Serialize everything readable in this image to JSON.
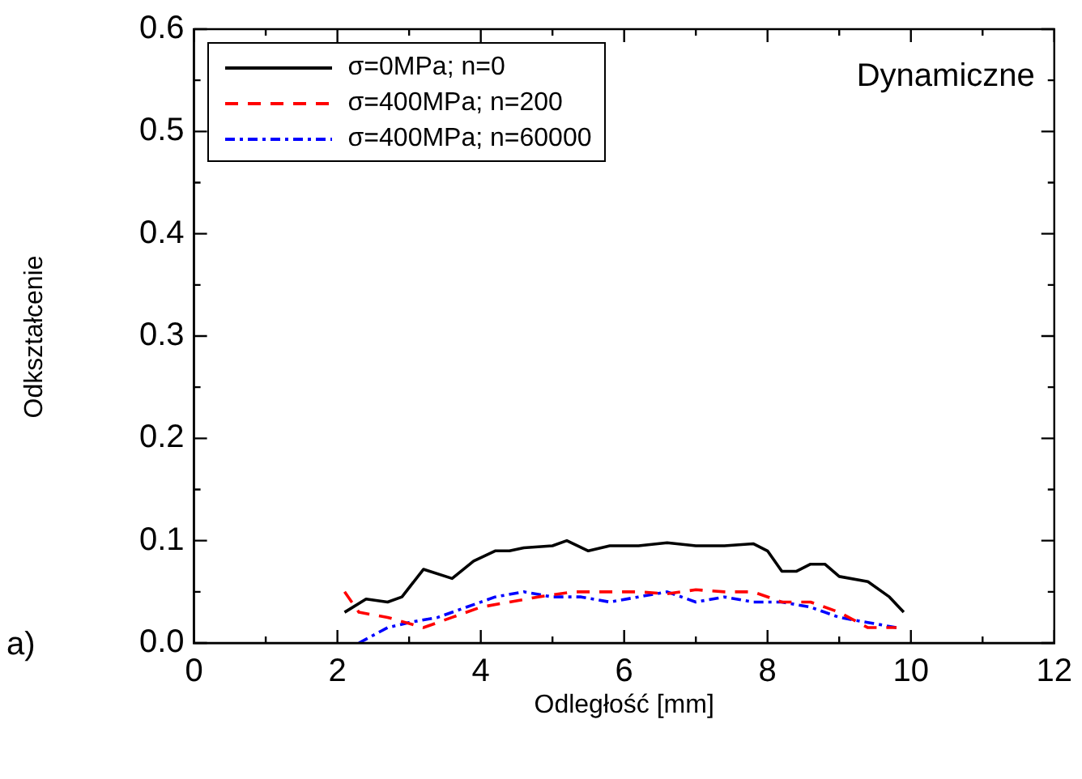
{
  "chart_data": {
    "type": "line",
    "xlabel": "Odległość [mm]",
    "ylabel": "Odkształcenie",
    "annotations": [
      "Dynamiczne",
      "a)"
    ],
    "xlim": [
      0,
      12
    ],
    "ylim": [
      0,
      0.6
    ],
    "xticks": [
      0,
      {
        "value": 1,
        "label": null
      },
      2,
      {
        "value": 3,
        "label": null
      },
      4,
      {
        "value": 5,
        "label": null
      },
      6,
      {
        "value": 7,
        "label": null
      },
      8,
      {
        "value": 9,
        "label": null
      },
      10,
      {
        "value": 11,
        "label": null
      },
      12
    ],
    "yticks": [
      {
        "value": 0,
        "label": "0.0"
      },
      {
        "value": 0.05,
        "label": null
      },
      0.1,
      {
        "value": 0.15,
        "label": null
      },
      0.2,
      {
        "value": 0.25,
        "label": null
      },
      0.3,
      {
        "value": 0.35,
        "label": null
      },
      0.4,
      {
        "value": 0.45,
        "label": null
      },
      0.5,
      {
        "value": 0.55,
        "label": null
      },
      0.6
    ],
    "grid": false,
    "legend": "top left",
    "marker": "none",
    "series": [
      {
        "name": "σ=0MPa; n=0",
        "color": "#000000",
        "line_style": "solid",
        "x": [
          2.1,
          2.4,
          2.7,
          2.9,
          3.2,
          3.6,
          3.9,
          4.2,
          4.4,
          4.6,
          5.0,
          5.2,
          5.5,
          5.8,
          6.2,
          6.6,
          7.0,
          7.4,
          7.8,
          8.0,
          8.2,
          8.4,
          8.6,
          8.8,
          9.0,
          9.4,
          9.7,
          9.9
        ],
        "values": [
          0.03,
          0.043,
          0.04,
          0.045,
          0.072,
          0.063,
          0.08,
          0.09,
          0.09,
          0.093,
          0.095,
          0.1,
          0.09,
          0.095,
          0.095,
          0.098,
          0.095,
          0.095,
          0.097,
          0.09,
          0.07,
          0.07,
          0.077,
          0.077,
          0.065,
          0.06,
          0.045,
          0.03
        ]
      },
      {
        "name": "σ=400MPa; n=200",
        "color": "#ff0000",
        "line_style": "dashed",
        "x": [
          2.1,
          2.3,
          2.7,
          3.2,
          3.6,
          4.0,
          4.4,
          4.8,
          5.3,
          5.8,
          6.2,
          6.6,
          7.0,
          7.4,
          7.8,
          8.2,
          8.6,
          9.0,
          9.4,
          9.8
        ],
        "values": [
          0.05,
          0.03,
          0.025,
          0.015,
          0.025,
          0.035,
          0.04,
          0.045,
          0.05,
          0.05,
          0.05,
          0.048,
          0.052,
          0.05,
          0.05,
          0.04,
          0.04,
          0.03,
          0.015,
          0.015
        ]
      },
      {
        "name": "σ=400MPa; n=60000",
        "color": "#0000ff",
        "line_style": "dashdot",
        "x": [
          2.3,
          2.7,
          3.0,
          3.4,
          3.8,
          4.2,
          4.6,
          5.0,
          5.4,
          5.8,
          6.2,
          6.6,
          7.0,
          7.4,
          7.8,
          8.2,
          8.6,
          9.0,
          9.4,
          9.8
        ],
        "values": [
          0.0,
          0.015,
          0.02,
          0.025,
          0.035,
          0.045,
          0.05,
          0.045,
          0.045,
          0.04,
          0.045,
          0.05,
          0.04,
          0.045,
          0.04,
          0.04,
          0.035,
          0.025,
          0.02,
          0.015
        ]
      }
    ]
  }
}
